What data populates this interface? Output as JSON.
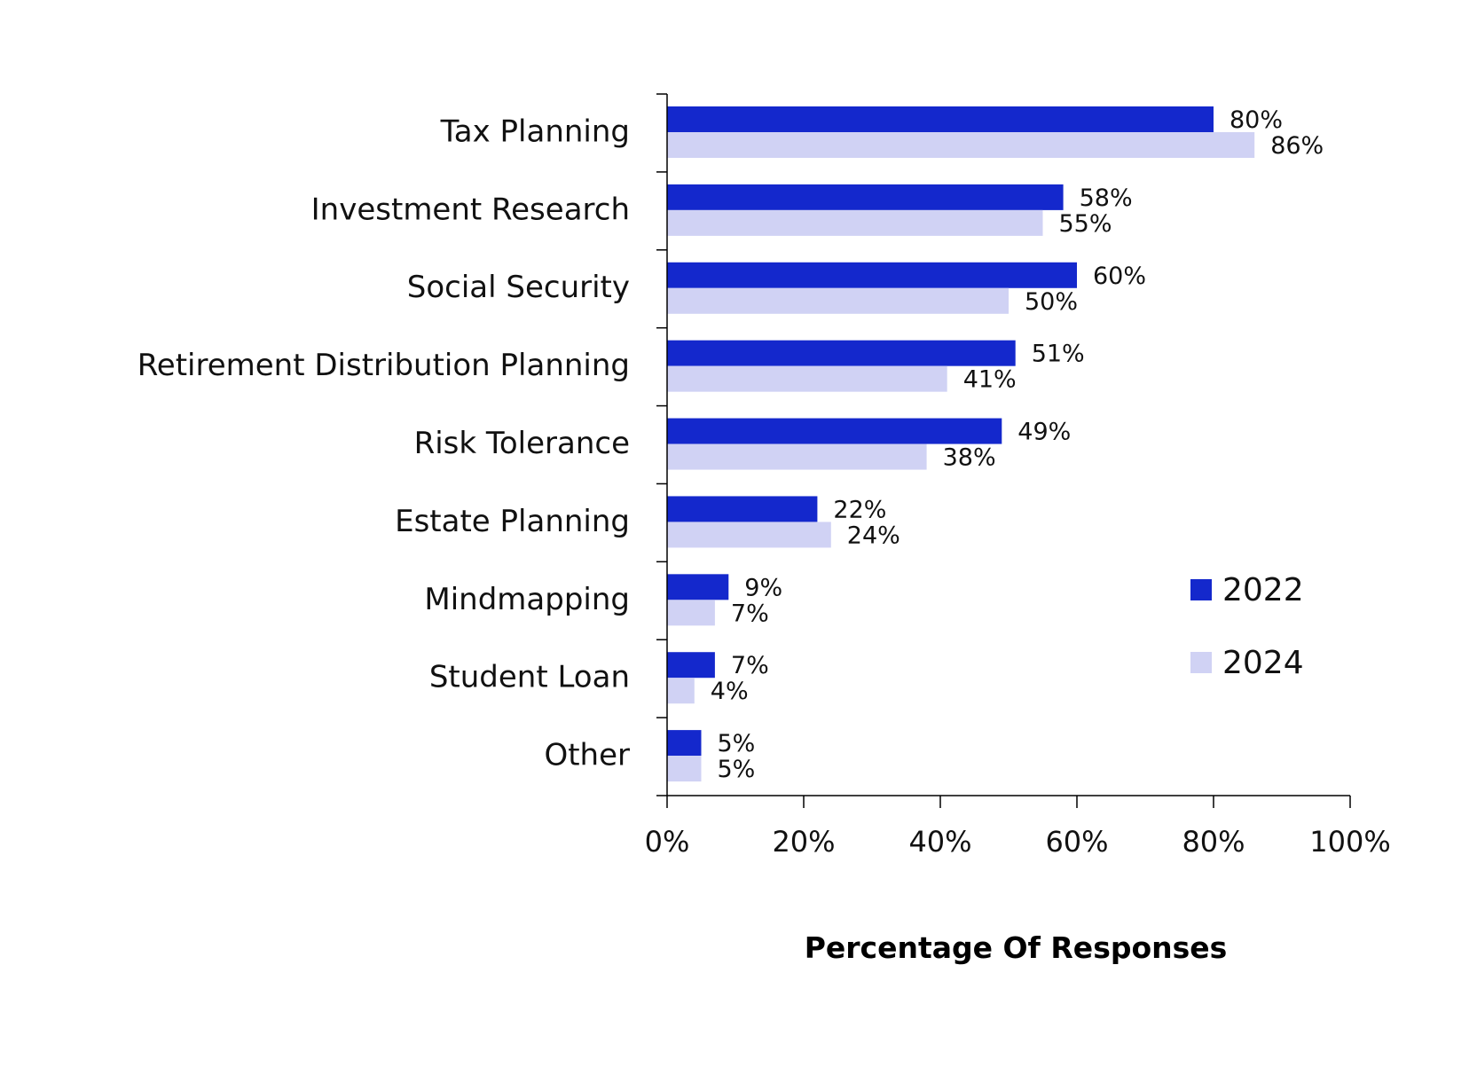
{
  "chart_data": {
    "type": "bar",
    "orientation": "horizontal",
    "categories": [
      "Tax Planning",
      "Investment Research",
      "Social Security",
      "Retirement Distribution Planning",
      "Risk Tolerance",
      "Estate Planning",
      "Mindmapping",
      "Student Loan",
      "Other"
    ],
    "series": [
      {
        "name": "2022",
        "color": "#1428cc",
        "values": [
          80,
          58,
          60,
          51,
          49,
          22,
          9,
          7,
          5
        ],
        "labels": [
          "80%",
          "58%",
          "60%",
          "51%",
          "49%",
          "22%",
          "9%",
          "7%",
          "5%"
        ]
      },
      {
        "name": "2024",
        "color": "#d0d2f4",
        "values": [
          86,
          55,
          50,
          41,
          38,
          24,
          7,
          4,
          5
        ],
        "labels": [
          "86%",
          "55%",
          "50%",
          "41%",
          "38%",
          "24%",
          "7%",
          "4%",
          "5%"
        ]
      }
    ],
    "xlabel": "Percentage Of Responses",
    "ylabel": "",
    "xlim": [
      0,
      100
    ],
    "xticks": [
      0,
      20,
      40,
      60,
      80,
      100
    ],
    "xtick_labels": [
      "0%",
      "20%",
      "40%",
      "60%",
      "80%",
      "100%"
    ],
    "grid": false,
    "legend_position": "right"
  }
}
